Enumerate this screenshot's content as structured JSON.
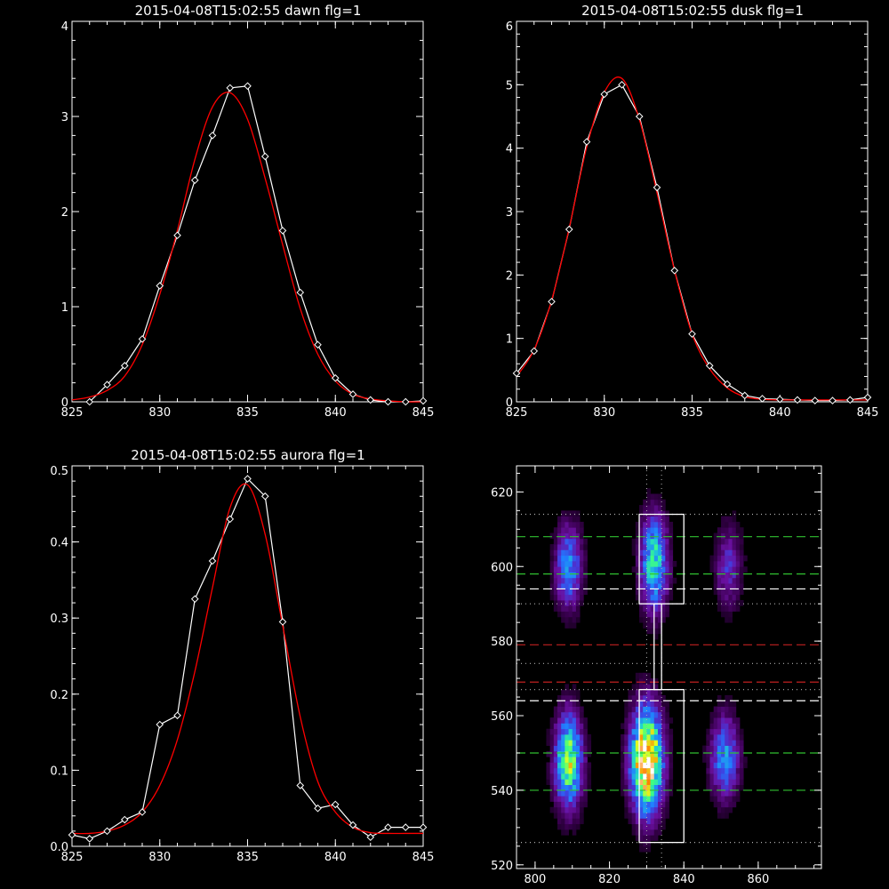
{
  "chart_data": [
    {
      "type": "line",
      "title": "2015-04-08T15:02:55 dawn flg=1",
      "xlim": [
        825,
        845
      ],
      "ylim": [
        0,
        4
      ],
      "xticks": [
        "825",
        "830",
        "835",
        "840",
        "845"
      ],
      "yticks": [
        "0",
        "1",
        "2",
        "3",
        "4"
      ],
      "series": [
        {
          "color": "#ffffff",
          "markers": "diamond",
          "x": [
            826,
            827,
            828,
            829,
            830,
            831,
            832,
            833,
            834,
            835,
            836,
            837,
            838,
            839,
            840,
            841,
            842,
            843,
            844,
            845
          ],
          "y": [
            0.0,
            0.18,
            0.38,
            0.66,
            1.22,
            1.75,
            2.33,
            2.8,
            3.3,
            3.32,
            2.58,
            1.8,
            1.15,
            0.6,
            0.25,
            0.08,
            0.02,
            0.0,
            0.0,
            0.01
          ]
        },
        {
          "color": "#ff0000",
          "markers": "none",
          "x": [
            825,
            826,
            827,
            828,
            829,
            830,
            831,
            832,
            833,
            834,
            835,
            836,
            837,
            838,
            839,
            840,
            841,
            842,
            843,
            844,
            845
          ],
          "y": [
            0.02,
            0.05,
            0.12,
            0.27,
            0.6,
            1.13,
            1.8,
            2.55,
            3.1,
            3.25,
            2.97,
            2.35,
            1.65,
            0.98,
            0.5,
            0.22,
            0.08,
            0.03,
            0.01,
            0.0,
            0.0
          ]
        }
      ]
    },
    {
      "type": "line",
      "title": "2015-04-08T15:02:55 dusk flg=1",
      "xlim": [
        825,
        845
      ],
      "ylim": [
        0,
        6
      ],
      "xticks": [
        "825",
        "830",
        "835",
        "840",
        "845"
      ],
      "yticks": [
        "0",
        "1",
        "2",
        "3",
        "4",
        "5",
        "6"
      ],
      "series": [
        {
          "color": "#ffffff",
          "markers": "diamond",
          "x": [
            825,
            826,
            827,
            828,
            829,
            830,
            831,
            832,
            833,
            834,
            835,
            836,
            837,
            838,
            839,
            840,
            841,
            842,
            843,
            844,
            845
          ],
          "y": [
            0.45,
            0.8,
            1.58,
            2.72,
            4.1,
            4.85,
            5.0,
            4.5,
            3.38,
            2.07,
            1.07,
            0.57,
            0.28,
            0.1,
            0.05,
            0.04,
            0.03,
            0.02,
            0.02,
            0.03,
            0.07
          ]
        },
        {
          "color": "#ff0000",
          "markers": "none",
          "x": [
            825,
            826,
            827,
            828,
            829,
            830,
            831,
            832,
            833,
            834,
            835,
            836,
            837,
            838,
            839,
            840,
            841,
            842,
            843,
            844,
            845
          ],
          "y": [
            0.4,
            0.82,
            1.6,
            2.74,
            4.02,
            4.88,
            5.1,
            4.45,
            3.3,
            2.07,
            1.07,
            0.52,
            0.22,
            0.08,
            0.04,
            0.03,
            0.03,
            0.03,
            0.03,
            0.03,
            0.03
          ]
        }
      ]
    },
    {
      "type": "line",
      "title": "2015-04-08T15:02:55 aurora flg=1",
      "xlim": [
        825,
        845
      ],
      "ylim": [
        0,
        0.5
      ],
      "xticks": [
        "825",
        "830",
        "835",
        "840",
        "845"
      ],
      "yticks": [
        "0.0",
        "0.1",
        "0.2",
        "0.3",
        "0.4",
        "0.5"
      ],
      "series": [
        {
          "color": "#ffffff",
          "markers": "diamond",
          "x": [
            825,
            826,
            827,
            828,
            829,
            830,
            831,
            832,
            833,
            834,
            835,
            836,
            837,
            838,
            839,
            840,
            841,
            842,
            843,
            844,
            845
          ],
          "y": [
            0.015,
            0.01,
            0.02,
            0.035,
            0.045,
            0.16,
            0.172,
            0.325,
            0.375,
            0.43,
            0.483,
            0.46,
            0.295,
            0.08,
            0.05,
            0.055,
            0.028,
            0.012,
            0.025,
            0.025,
            0.025
          ]
        },
        {
          "color": "#ff0000",
          "markers": "none",
          "x": [
            825,
            826,
            827,
            828,
            829,
            830,
            831,
            832,
            833,
            834,
            835,
            836,
            837,
            838,
            839,
            840,
            841,
            842,
            843,
            844,
            845
          ],
          "y": [
            0.017,
            0.017,
            0.02,
            0.028,
            0.045,
            0.08,
            0.14,
            0.23,
            0.34,
            0.445,
            0.475,
            0.41,
            0.29,
            0.17,
            0.085,
            0.045,
            0.025,
            0.018,
            0.017,
            0.017,
            0.017
          ]
        }
      ]
    },
    {
      "type": "heatmap",
      "xlim": [
        795,
        877
      ],
      "ylim": [
        519,
        627
      ],
      "xticks": [
        "800",
        "820",
        "840",
        "860"
      ],
      "yticks": [
        "520",
        "540",
        "560",
        "580",
        "600",
        "620"
      ],
      "colormap": [
        "#000000",
        "#3a0050",
        "#6a10a0",
        "#4040e0",
        "#2080ff",
        "#20d0d0",
        "#40ff80",
        "#e0ff20",
        "#ff8000",
        "#ffffff"
      ],
      "blobs": [
        {
          "x": 809,
          "y": 548,
          "sx": 2.6,
          "sy": 9,
          "peak": 0.72
        },
        {
          "x": 809,
          "y": 600,
          "sx": 2.6,
          "sy": 8,
          "peak": 0.45
        },
        {
          "x": 830,
          "y": 548,
          "sx": 3.0,
          "sy": 10,
          "peak": 1.0
        },
        {
          "x": 832,
          "y": 601,
          "sx": 2.6,
          "sy": 9,
          "peak": 0.6
        },
        {
          "x": 851,
          "y": 549,
          "sx": 2.8,
          "sy": 8,
          "peak": 0.45
        },
        {
          "x": 852,
          "y": 600,
          "sx": 2.6,
          "sy": 8,
          "peak": 0.28
        }
      ],
      "hlines": [
        {
          "y": 608,
          "color": "#30c030",
          "style": "dashed"
        },
        {
          "y": 598,
          "color": "#30c030",
          "style": "dashed"
        },
        {
          "y": 594,
          "color": "#ffffff",
          "style": "dashed"
        },
        {
          "y": 579,
          "color": "#c02020",
          "style": "dashed"
        },
        {
          "y": 569,
          "color": "#c02020",
          "style": "dashed"
        },
        {
          "y": 564,
          "color": "#ffffff",
          "style": "dashed"
        },
        {
          "y": 550,
          "color": "#30c030",
          "style": "dashed"
        },
        {
          "y": 540,
          "color": "#30c030",
          "style": "dashed"
        },
        {
          "y": 614,
          "color": "#b0b0b0",
          "style": "dotted"
        },
        {
          "y": 590,
          "color": "#b0b0b0",
          "style": "dotted"
        },
        {
          "y": 574,
          "color": "#b0b0b0",
          "style": "dotted"
        },
        {
          "y": 567,
          "color": "#b0b0b0",
          "style": "dotted"
        },
        {
          "y": 526,
          "color": "#b0b0b0",
          "style": "dotted"
        }
      ],
      "vlines": [
        {
          "x": 830,
          "color": "#b0b0b0",
          "style": "dotted"
        },
        {
          "x": 834,
          "color": "#b0b0b0",
          "style": "dotted"
        }
      ],
      "boxes": [
        {
          "x0": 828,
          "x1": 840,
          "y0": 590,
          "y1": 614
        },
        {
          "x0": 828,
          "x1": 840,
          "y0": 526,
          "y1": 567
        }
      ],
      "connector": {
        "x0": 832,
        "x1": 834,
        "y0": 567,
        "y1": 590
      }
    }
  ]
}
